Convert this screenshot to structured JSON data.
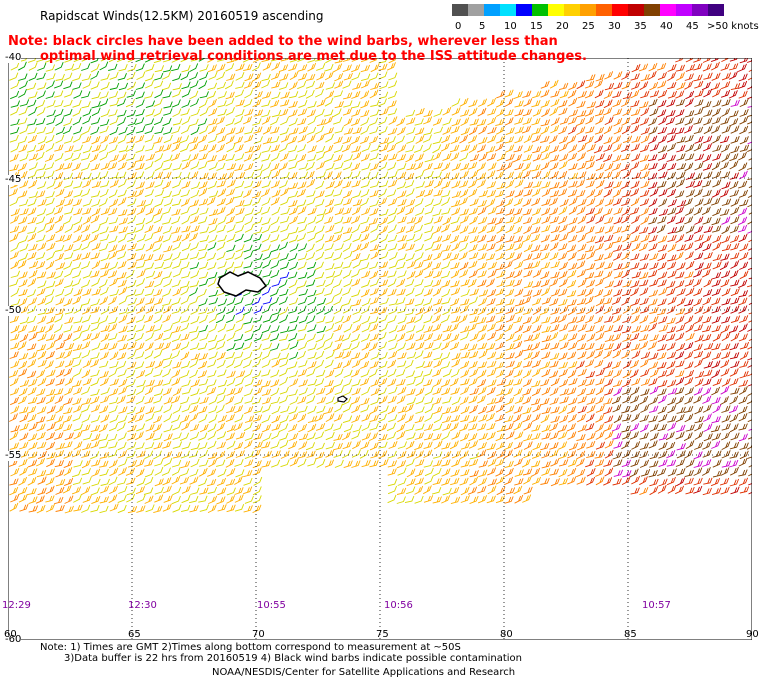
{
  "header": {
    "title": "Rapidscat Winds(12.5KM) 20160519 ascending"
  },
  "note": {
    "line1": "Note: black circles have been added to the wind barbs, wherever less than",
    "line2": "optimal wind retrieval conditions are met due to the ISS attitude changes."
  },
  "color_scale": {
    "unit_label": ">50 knots",
    "ticks": [
      "0",
      "5",
      "10",
      "15",
      "20",
      "25",
      "30",
      "35",
      "40",
      "45"
    ],
    "colors": [
      "#505050",
      "#a0a0a0",
      "#00a0ff",
      "#0000ff",
      "#00c000",
      "#ffff00",
      "#ffb000",
      "#ff6000",
      "#ff0000",
      "#c00000",
      "#804000",
      "#ff00ff",
      "#a000ff",
      "#400080"
    ]
  },
  "map": {
    "lat_labels": [
      "-40",
      "-45",
      "-50",
      "-55",
      "-60"
    ],
    "lon_labels": [
      "60",
      "65",
      "70",
      "75",
      "80",
      "85",
      "90"
    ],
    "pass_times": [
      "12:29",
      "12:30",
      "10:55",
      "10:56",
      "10:57"
    ]
  },
  "footer": {
    "line1": "Note: 1) Times are GMT 2)Times along bottom correspond to measurement at ~50S",
    "line2": "3)Data buffer is 22 hrs from 20160519 4) Black wind barbs indicate possible contamination",
    "line3": "NOAA/NESDIS/Center for Satellite Applications and Research"
  }
}
